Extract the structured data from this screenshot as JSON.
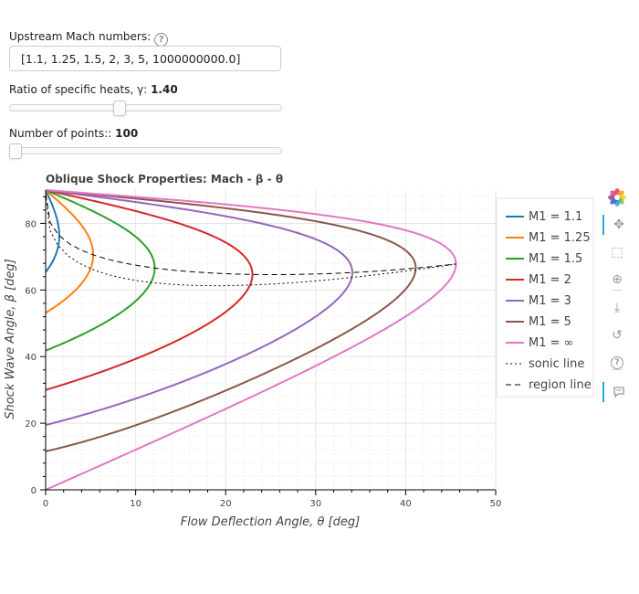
{
  "controls": {
    "mach_label": "Upstream Mach numbers:",
    "mach_value": "[1.1, 1.25, 1.5, 2, 3, 5, 1000000000.0]",
    "gamma_label": "Ratio of specific heats, γ:",
    "gamma_value": "1.40",
    "gamma_fraction": 0.4,
    "points_label": "Number of points::",
    "points_value": "100",
    "points_fraction": 0.0
  },
  "toolbar": [
    "bokeh-logo-icon",
    "pan-icon",
    "box-zoom-icon",
    "wheel-zoom-icon",
    "save-icon",
    "reset-icon",
    "help-icon",
    "hover-icon"
  ],
  "chart_data": {
    "type": "line",
    "title": "Oblique Shock Properties: Mach - β - θ",
    "xlabel": "Flow Deflection Angle, θ [deg]",
    "ylabel": "Shock Wave Angle, β [deg]",
    "xlim": [
      0,
      50
    ],
    "ylim": [
      0,
      90
    ],
    "xticks": [
      0,
      10,
      20,
      30,
      40,
      50
    ],
    "yticks": [
      0,
      20,
      40,
      60,
      80
    ],
    "grid": true,
    "legend_position": "right",
    "gamma": 1.4,
    "series": [
      {
        "name": "M1 = 1.1",
        "mach": 1.1,
        "color": "#1f77b4"
      },
      {
        "name": "M1 = 1.25",
        "mach": 1.25,
        "color": "#ff7f0e"
      },
      {
        "name": "M1 = 1.5",
        "mach": 1.5,
        "color": "#2ca02c"
      },
      {
        "name": "M1 = 2",
        "mach": 2,
        "color": "#d62728"
      },
      {
        "name": "M1 = 3",
        "mach": 3,
        "color": "#9467bd"
      },
      {
        "name": "M1 = 5",
        "mach": 5,
        "color": "#8c564b"
      },
      {
        "name": "M1 = ∞",
        "mach": 1000000000.0,
        "color": "#e377c2"
      }
    ],
    "sonic_line": {
      "name": "sonic line",
      "color": "#000000",
      "dash": "dotted"
    },
    "region_line": {
      "name": "region line",
      "color": "#000000",
      "dash": "dashed"
    }
  }
}
